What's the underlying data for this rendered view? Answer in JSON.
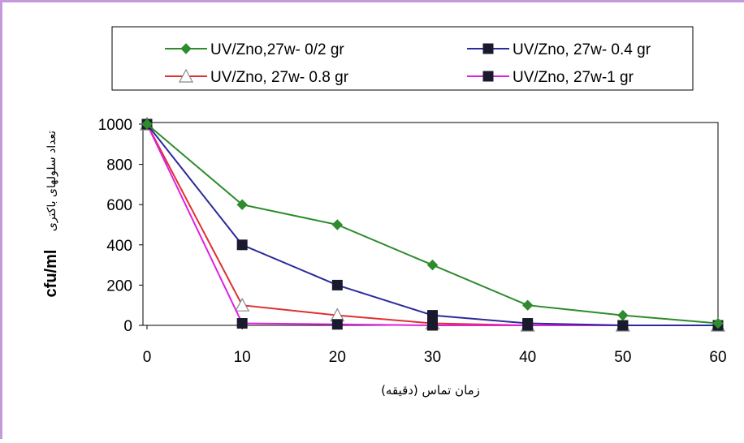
{
  "chart_data": {
    "type": "line",
    "x": [
      0,
      10,
      20,
      30,
      40,
      50,
      60
    ],
    "xlim": [
      0,
      60
    ],
    "ylim": [
      0,
      1000
    ],
    "xticks": [
      "0",
      "10",
      "20",
      "30",
      "40",
      "50",
      "60"
    ],
    "yticks": [
      "0",
      "200",
      "400",
      "600",
      "800",
      "1000"
    ],
    "xlabel": "زمان تماس (دقیقه)",
    "ylabel": "تعداد سلولهای باکتری",
    "ylabel_unit": "cfu/ml",
    "grid": false,
    "legend_position": "top",
    "series": [
      {
        "name": "UV/Zno,27w- 0/2 gr",
        "color": "#2e8b2e",
        "marker": "diamond",
        "values": [
          1000,
          600,
          500,
          300,
          100,
          50,
          10
        ]
      },
      {
        "name": "UV/Zno, 27w- 0.4 gr",
        "color": "#2b2b9a",
        "marker": "square",
        "values": [
          1000,
          400,
          200,
          50,
          10,
          0,
          0
        ]
      },
      {
        "name": "UV/Zno, 27w- 0.8 gr",
        "color": "#e03030",
        "marker": "triangle-open",
        "values": [
          1000,
          100,
          50,
          10,
          0,
          0,
          0
        ]
      },
      {
        "name": "UV/Zno, 27w-1 gr",
        "color": "#e020e0",
        "marker": "square",
        "values": [
          1000,
          10,
          5,
          0,
          0,
          0,
          0
        ]
      }
    ]
  }
}
